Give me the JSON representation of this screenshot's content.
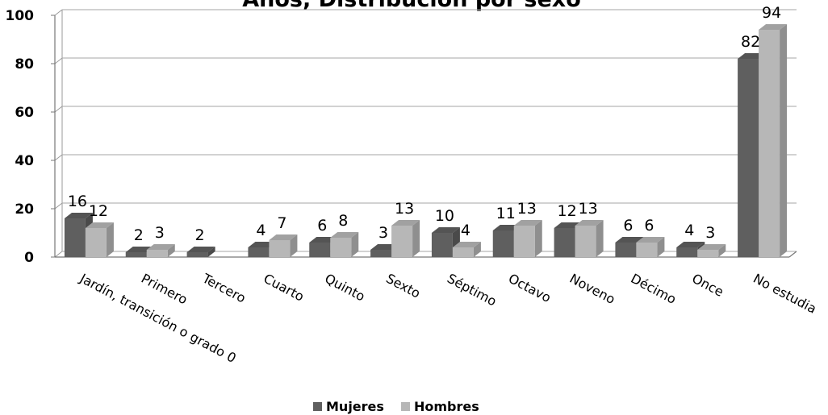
{
  "chart_data": {
    "type": "bar",
    "title": "Años, Distribución por sexo",
    "xlabel": "",
    "ylabel": "",
    "ylim": [
      0,
      100
    ],
    "yticks": [
      0,
      20,
      40,
      60,
      80,
      100
    ],
    "categories": [
      "Jardín, transición o grado 0",
      "Primero",
      "Tercero",
      "Cuarto",
      "Quinto",
      "Sexto",
      "Séptimo",
      "Octavo",
      "Noveno",
      "Décimo",
      "Once",
      "No estudia"
    ],
    "series": [
      {
        "name": "Mujeres",
        "color": "#5f5f5f",
        "values": [
          16,
          2,
          2,
          4,
          6,
          3,
          10,
          11,
          12,
          6,
          4,
          82
        ]
      },
      {
        "name": "Hombres",
        "color": "#b7b7b7",
        "values": [
          12,
          3,
          0,
          7,
          8,
          13,
          4,
          13,
          13,
          6,
          3,
          94
        ]
      }
    ],
    "data_labels": [
      [
        "16",
        "2",
        "2",
        "4",
        "6",
        "3",
        "10",
        "11",
        "12",
        "6",
        "4",
        "82"
      ],
      [
        "12",
        "3",
        "",
        "7",
        "8",
        "13",
        "4",
        "13",
        "13",
        "6",
        "3",
        "94"
      ]
    ],
    "grid": true,
    "legend": "bottom",
    "style": "3d-columns"
  }
}
